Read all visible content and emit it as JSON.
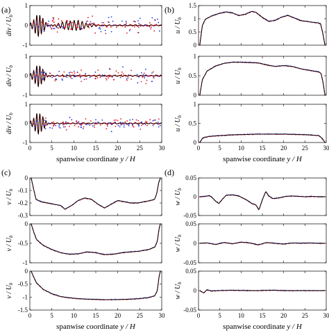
{
  "chart_data": [
    {
      "panel": "(a)",
      "type": "line",
      "subplots": [
        {
          "ylabel": "div / U_b",
          "ylim": [
            -1,
            1
          ],
          "yticks": [
            -1,
            0,
            1
          ],
          "xlim": [
            0,
            30
          ],
          "xticks": [
            0,
            5,
            10,
            15,
            20,
            25,
            30
          ],
          "show_xticklabels": false
        },
        {
          "ylabel": "div / U_b",
          "ylim": [
            -1,
            1
          ],
          "yticks": [
            -1,
            0,
            1
          ],
          "xlim": [
            0,
            30
          ],
          "xticks": [
            0,
            5,
            10,
            15,
            20,
            25,
            30
          ],
          "show_xticklabels": false
        },
        {
          "ylabel": "div / U_b",
          "ylim": [
            -1,
            1
          ],
          "yticks": [
            -1,
            0,
            1
          ],
          "xlim": [
            0,
            30
          ],
          "xticks": [
            0,
            5,
            10,
            15,
            20,
            25,
            30
          ],
          "show_xticklabels": true
        }
      ],
      "xlabel": "spanwise coordinate  y / H",
      "series_colors": [
        "#000000",
        "#e8141a",
        "#2138d9"
      ]
    },
    {
      "panel": "(b)",
      "type": "line",
      "subplots": [
        {
          "ylabel": "u / U_b",
          "ylim": [
            0,
            1.5
          ],
          "yticks": [
            0,
            0.5,
            1,
            1.5
          ],
          "xlim": [
            0,
            30
          ],
          "xticks": [
            0,
            5,
            10,
            15,
            20,
            25,
            30
          ],
          "show_xticklabels": false,
          "profile_x": [
            0.3,
            0.9,
            1.6,
            3,
            5,
            6.5,
            8,
            9.5,
            11,
            12.5,
            13.5,
            15,
            16.5,
            18,
            19.5,
            21,
            22.5,
            24,
            25.5,
            27,
            28.2,
            28.7,
            29.2,
            29.7
          ],
          "profile_y": [
            0,
            0.75,
            0.98,
            1.1,
            1.21,
            1.26,
            1.22,
            1.12,
            1.17,
            1.28,
            1.24,
            1.05,
            0.9,
            0.94,
            1.06,
            1.13,
            1.03,
            0.93,
            0.9,
            0.86,
            0.84,
            0.8,
            0.45,
            0
          ]
        },
        {
          "ylabel": "u / U_b",
          "ylim": [
            0,
            1
          ],
          "yticks": [
            0,
            0.5,
            1
          ],
          "xlim": [
            0,
            30
          ],
          "xticks": [
            0,
            5,
            10,
            15,
            20,
            25,
            30
          ],
          "show_xticklabels": false,
          "profile_x": [
            0.3,
            0.9,
            2,
            4,
            6,
            8,
            10,
            12,
            14,
            16,
            18,
            20,
            22,
            24,
            26,
            28.2,
            28.8,
            29.3,
            29.7
          ],
          "profile_y": [
            0,
            0.4,
            0.62,
            0.75,
            0.82,
            0.85,
            0.85,
            0.84,
            0.83,
            0.78,
            0.74,
            0.76,
            0.74,
            0.68,
            0.64,
            0.6,
            0.56,
            0.3,
            0
          ]
        },
        {
          "ylabel": "u / U_b",
          "ylim": [
            0,
            1
          ],
          "yticks": [
            0,
            0.5,
            1
          ],
          "xlim": [
            0,
            30
          ],
          "xticks": [
            0,
            5,
            10,
            15,
            20,
            25,
            30
          ],
          "show_xticklabels": true,
          "profile_x": [
            0.3,
            1,
            2.5,
            5,
            8,
            11,
            14,
            17,
            20,
            23,
            26,
            28.3,
            29.1,
            29.7
          ],
          "profile_y": [
            0,
            0.12,
            0.16,
            0.18,
            0.2,
            0.21,
            0.22,
            0.22,
            0.22,
            0.21,
            0.2,
            0.18,
            0.1,
            0
          ]
        }
      ],
      "xlabel": "spanwise coordinate  y / H",
      "series_colors": [
        "#000000",
        "#e8141a",
        "#2138d9"
      ]
    },
    {
      "panel": "(c)",
      "type": "line",
      "subplots": [
        {
          "ylabel": "v / U_b",
          "ylim": [
            -0.3,
            0
          ],
          "yticks": [
            -0.3,
            -0.2,
            -0.1,
            0
          ],
          "xlim": [
            0,
            30
          ],
          "xticks": [
            0,
            5,
            10,
            15,
            20,
            25,
            30
          ],
          "show_xticklabels": false,
          "profile_x": [
            0.3,
            0.8,
            1.4,
            2.5,
            4,
            5.5,
            7,
            8,
            9.5,
            11,
            12.5,
            14,
            15.5,
            17,
            18.5,
            20,
            21.5,
            23,
            24.5,
            26,
            27.5,
            28.4,
            28.9,
            29.3,
            29.7
          ],
          "profile_y": [
            0,
            -0.08,
            -0.17,
            -0.19,
            -0.2,
            -0.21,
            -0.22,
            -0.25,
            -0.22,
            -0.18,
            -0.16,
            -0.17,
            -0.21,
            -0.24,
            -0.21,
            -0.18,
            -0.19,
            -0.2,
            -0.2,
            -0.19,
            -0.18,
            -0.17,
            -0.12,
            -0.04,
            0
          ]
        },
        {
          "ylabel": "v / U_b",
          "ylim": [
            -1,
            0
          ],
          "yticks": [
            -1,
            -0.5,
            0
          ],
          "xlim": [
            0,
            30
          ],
          "xticks": [
            0,
            5,
            10,
            15,
            20,
            25,
            30
          ],
          "show_xticklabels": false,
          "profile_x": [
            0.3,
            0.8,
            1.5,
            3,
            5,
            7,
            9,
            11,
            13,
            15,
            17,
            19,
            21,
            23,
            25,
            27,
            28.4,
            29,
            29.4,
            29.7
          ],
          "profile_y": [
            0,
            -0.18,
            -0.4,
            -0.55,
            -0.66,
            -0.74,
            -0.78,
            -0.77,
            -0.72,
            -0.74,
            -0.79,
            -0.78,
            -0.74,
            -0.72,
            -0.7,
            -0.66,
            -0.6,
            -0.45,
            -0.12,
            0
          ]
        },
        {
          "ylabel": "v / U_b",
          "ylim": [
            -1.5,
            0
          ],
          "yticks": [
            -1.5,
            -1,
            -0.5,
            0
          ],
          "xlim": [
            0,
            30
          ],
          "xticks": [
            0,
            5,
            10,
            15,
            20,
            25,
            30
          ],
          "show_xticklabels": true,
          "profile_x": [
            0.3,
            0.8,
            1.5,
            3,
            5,
            7,
            9,
            11,
            13,
            15,
            17,
            19,
            21,
            23,
            25,
            27,
            28.4,
            29,
            29.4,
            29.7
          ],
          "profile_y": [
            0,
            -0.2,
            -0.45,
            -0.7,
            -0.87,
            -0.98,
            -1.03,
            -1.06,
            -1.08,
            -1.09,
            -1.1,
            -1.1,
            -1.09,
            -1.08,
            -1.06,
            -1.02,
            -0.95,
            -0.75,
            -0.2,
            0
          ]
        }
      ],
      "xlabel": "spanwise coordinate  y / H",
      "series_colors": [
        "#000000",
        "#e8141a",
        "#2138d9"
      ]
    },
    {
      "panel": "(d)",
      "type": "line",
      "subplots": [
        {
          "ylabel": "w / U_b",
          "ylim": [
            -0.05,
            0.05
          ],
          "yticks": [
            -0.05,
            0,
            0.05
          ],
          "xlim": [
            0,
            30
          ],
          "xticks": [
            0,
            5,
            10,
            15,
            20,
            25,
            30
          ],
          "show_xticklabels": false,
          "profile_x": [
            0.3,
            1.5,
            2.5,
            3.2,
            4,
            4.8,
            5.5,
            6.5,
            8,
            9.5,
            10.5,
            11.5,
            12.5,
            13.5,
            14.2,
            15,
            15.8,
            16.5,
            17.5,
            19,
            20.5,
            22,
            23.5,
            25,
            26.5,
            28,
            29.7
          ],
          "profile_y": [
            0,
            0.001,
            0.003,
            -0.002,
            -0.012,
            -0.018,
            -0.008,
            0.004,
            0.005,
            0.002,
            -0.004,
            -0.01,
            -0.018,
            -0.022,
            -0.035,
            -0.008,
            0.014,
            0.002,
            -0.005,
            -0.003,
            0.001,
            0.002,
            0.001,
            0,
            0.001,
            0,
            0
          ]
        },
        {
          "ylabel": "w / U_b",
          "ylim": [
            -0.05,
            0.05
          ],
          "yticks": [
            -0.05,
            0,
            0.05
          ],
          "xlim": [
            0,
            30
          ],
          "xticks": [
            0,
            5,
            10,
            15,
            20,
            25,
            30
          ],
          "show_xticklabels": false,
          "profile_x": [
            0.3,
            2,
            4,
            6,
            8,
            10,
            12,
            14,
            16,
            18,
            20,
            22,
            24,
            26,
            28,
            29.7
          ],
          "profile_y": [
            0,
            0.001,
            -0.003,
            0.002,
            -0.001,
            0.003,
            0.001,
            -0.004,
            0.002,
            0,
            -0.002,
            0.001,
            0,
            0.001,
            0,
            0
          ]
        },
        {
          "ylabel": "w / U_b",
          "ylim": [
            -0.05,
            0.05
          ],
          "yticks": [
            -0.05,
            0,
            0.05
          ],
          "xlim": [
            0,
            30
          ],
          "xticks": [
            0,
            5,
            10,
            15,
            20,
            25,
            30
          ],
          "show_xticklabels": true,
          "profile_x": [
            0.3,
            1.2,
            2,
            3,
            5,
            8,
            11,
            14,
            17,
            20,
            23,
            26,
            29,
            29.7
          ],
          "profile_y": [
            0,
            -0.006,
            0.002,
            -0.001,
            0,
            0.001,
            0,
            0,
            0.001,
            0,
            0,
            0,
            0,
            0
          ]
        }
      ],
      "xlabel": "spanwise coordinate  y / H",
      "series_colors": [
        "#000000",
        "#e8141a",
        "#2138d9"
      ]
    }
  ]
}
